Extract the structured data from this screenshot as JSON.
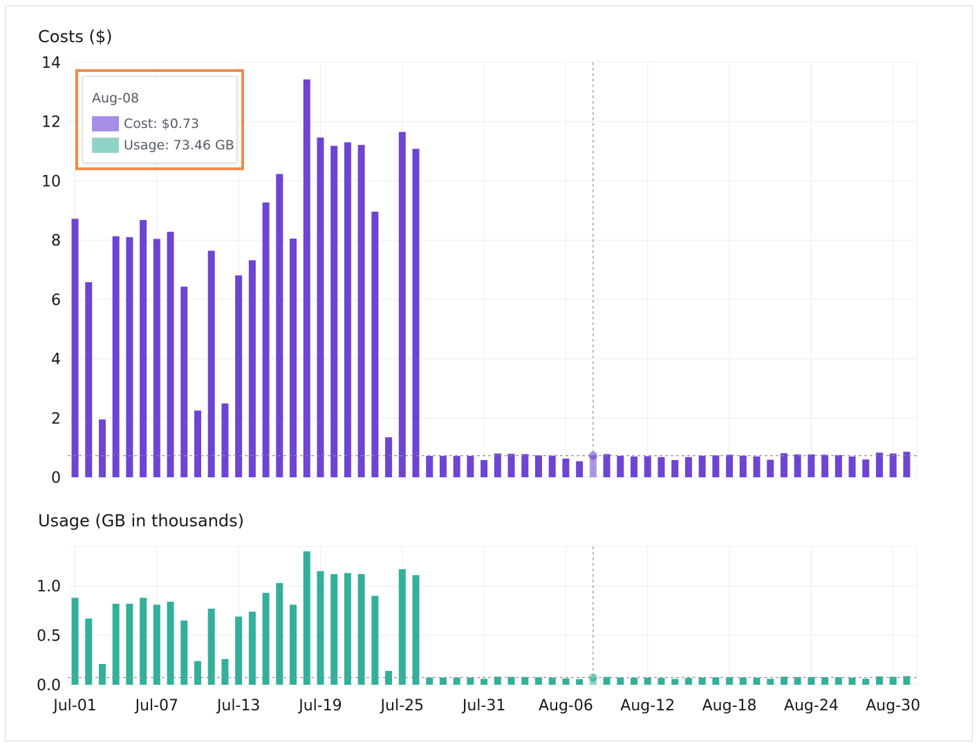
{
  "colors": {
    "cost": "#6d44d4",
    "usage": "#32b09b",
    "cost_swatch": "#a58ee6",
    "usage_swatch": "#8fd3c6",
    "highlight": "#f5894a"
  },
  "tooltip": {
    "date": "Aug-08",
    "cost_label": "Cost: $0.73",
    "usage_label": "Usage: 73.46 GB"
  },
  "chart_data": [
    {
      "type": "bar",
      "title": "Costs ($)",
      "xlabel": "",
      "ylabel": "",
      "ylim": [
        0,
        14
      ],
      "yticks": [
        0,
        2,
        4,
        6,
        8,
        10,
        12,
        14
      ],
      "grid": true,
      "threshold": 0.73,
      "highlighted_category": "Aug-08",
      "xtick_labels": [
        "Jul-01",
        "Jul-07",
        "Jul-13",
        "Jul-19",
        "Jul-25",
        "Jul-31",
        "Aug-06",
        "Aug-12",
        "Aug-18",
        "Aug-24",
        "Aug-30"
      ],
      "categories": [
        "Jul-01",
        "Jul-02",
        "Jul-03",
        "Jul-04",
        "Jul-05",
        "Jul-06",
        "Jul-07",
        "Jul-08",
        "Jul-09",
        "Jul-10",
        "Jul-11",
        "Jul-12",
        "Jul-13",
        "Jul-14",
        "Jul-15",
        "Jul-16",
        "Jul-17",
        "Jul-18",
        "Jul-19",
        "Jul-20",
        "Jul-21",
        "Jul-22",
        "Jul-23",
        "Jul-24",
        "Jul-25",
        "Jul-26",
        "Jul-27",
        "Jul-28",
        "Jul-29",
        "Jul-30",
        "Jul-31",
        "Aug-01",
        "Aug-02",
        "Aug-03",
        "Aug-04",
        "Aug-05",
        "Aug-06",
        "Aug-07",
        "Aug-08",
        "Aug-09",
        "Aug-10",
        "Aug-11",
        "Aug-12",
        "Aug-13",
        "Aug-14",
        "Aug-15",
        "Aug-16",
        "Aug-17",
        "Aug-18",
        "Aug-19",
        "Aug-20",
        "Aug-21",
        "Aug-22",
        "Aug-23",
        "Aug-24",
        "Aug-25",
        "Aug-26",
        "Aug-27",
        "Aug-28",
        "Aug-29",
        "Aug-30",
        "Aug-31"
      ],
      "series": [
        {
          "values": [
            8.72,
            6.58,
            1.95,
            8.13,
            8.1,
            8.68,
            8.04,
            8.28,
            6.43,
            2.25,
            7.64,
            2.49,
            6.81,
            7.32,
            9.27,
            10.23,
            8.05,
            13.42,
            11.46,
            11.18,
            11.3,
            11.21,
            8.96,
            1.35,
            11.65,
            11.08,
            0.72,
            0.72,
            0.72,
            0.72,
            0.58,
            0.8,
            0.79,
            0.78,
            0.74,
            0.73,
            0.63,
            0.54,
            0.73,
            0.78,
            0.72,
            0.7,
            0.71,
            0.68,
            0.58,
            0.68,
            0.73,
            0.74,
            0.76,
            0.73,
            0.7,
            0.59,
            0.81,
            0.77,
            0.77,
            0.76,
            0.75,
            0.7,
            0.6,
            0.83,
            0.8,
            0.86
          ]
        }
      ]
    },
    {
      "type": "bar",
      "title": "Usage (GB in thousands)",
      "xlabel": "",
      "ylabel": "",
      "ylim": [
        0,
        1.4
      ],
      "yticks": [
        0.0,
        0.5,
        1.0
      ],
      "ytick_labels": [
        "0.0",
        "0.5",
        "1.0"
      ],
      "grid": true,
      "threshold": 0.07346,
      "highlighted_category": "Aug-08",
      "xtick_labels": [
        "Jul-01",
        "Jul-07",
        "Jul-13",
        "Jul-19",
        "Jul-25",
        "Jul-31",
        "Aug-06",
        "Aug-12",
        "Aug-18",
        "Aug-24",
        "Aug-30"
      ],
      "categories": [
        "Jul-01",
        "Jul-02",
        "Jul-03",
        "Jul-04",
        "Jul-05",
        "Jul-06",
        "Jul-07",
        "Jul-08",
        "Jul-09",
        "Jul-10",
        "Jul-11",
        "Jul-12",
        "Jul-13",
        "Jul-14",
        "Jul-15",
        "Jul-16",
        "Jul-17",
        "Jul-18",
        "Jul-19",
        "Jul-20",
        "Jul-21",
        "Jul-22",
        "Jul-23",
        "Jul-24",
        "Jul-25",
        "Jul-26",
        "Jul-27",
        "Jul-28",
        "Jul-29",
        "Jul-30",
        "Jul-31",
        "Aug-01",
        "Aug-02",
        "Aug-03",
        "Aug-04",
        "Aug-05",
        "Aug-06",
        "Aug-07",
        "Aug-08",
        "Aug-09",
        "Aug-10",
        "Aug-11",
        "Aug-12",
        "Aug-13",
        "Aug-14",
        "Aug-15",
        "Aug-16",
        "Aug-17",
        "Aug-18",
        "Aug-19",
        "Aug-20",
        "Aug-21",
        "Aug-22",
        "Aug-23",
        "Aug-24",
        "Aug-25",
        "Aug-26",
        "Aug-27",
        "Aug-28",
        "Aug-29",
        "Aug-30",
        "Aug-31"
      ],
      "series": [
        {
          "values": [
            0.88,
            0.67,
            0.21,
            0.82,
            0.82,
            0.88,
            0.81,
            0.84,
            0.65,
            0.24,
            0.77,
            0.26,
            0.69,
            0.74,
            0.93,
            1.03,
            0.81,
            1.35,
            1.15,
            1.12,
            1.13,
            1.12,
            0.9,
            0.14,
            1.17,
            1.11,
            0.073,
            0.073,
            0.073,
            0.073,
            0.06,
            0.082,
            0.08,
            0.079,
            0.075,
            0.073,
            0.064,
            0.056,
            0.073,
            0.079,
            0.073,
            0.071,
            0.072,
            0.069,
            0.059,
            0.069,
            0.074,
            0.075,
            0.077,
            0.074,
            0.071,
            0.06,
            0.082,
            0.078,
            0.078,
            0.077,
            0.076,
            0.071,
            0.061,
            0.084,
            0.081,
            0.087
          ]
        }
      ]
    }
  ]
}
